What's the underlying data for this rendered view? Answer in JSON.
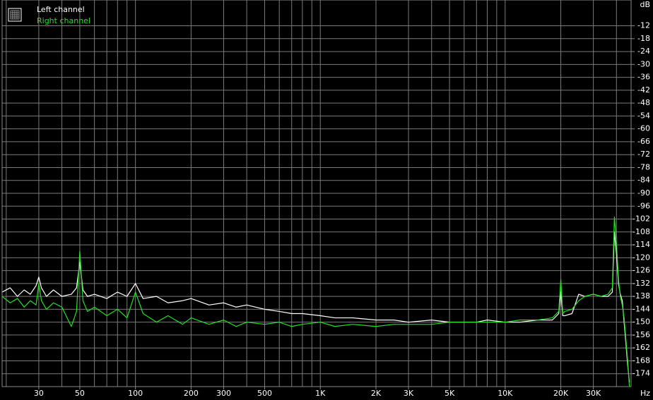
{
  "chart_data": {
    "type": "line",
    "xlabel": "Hz",
    "ylabel": "dB",
    "log_x": true,
    "grid": true,
    "legend": "top-left",
    "xlim": [
      19,
      48000
    ],
    "ylim": [
      -180,
      0
    ],
    "xticks": [
      30,
      50,
      100,
      200,
      300,
      500,
      {
        "value": 1000,
        "label": "1K"
      },
      {
        "value": 2000,
        "label": "2K"
      },
      {
        "value": 3000,
        "label": "3K"
      },
      {
        "value": 5000,
        "label": "5K"
      },
      {
        "value": 10000,
        "label": "10K"
      },
      {
        "value": 20000,
        "label": "20K"
      },
      {
        "value": 30000,
        "label": "30K"
      }
    ],
    "xgrid": [
      20,
      30,
      40,
      50,
      60,
      70,
      80,
      90,
      100,
      200,
      300,
      400,
      500,
      600,
      700,
      800,
      900,
      1000,
      2000,
      3000,
      4000,
      5000,
      6000,
      7000,
      8000,
      9000,
      10000,
      20000,
      30000,
      40000
    ],
    "yticks": [
      -12,
      -18,
      -24,
      -30,
      -36,
      -42,
      -48,
      -54,
      -60,
      -66,
      -72,
      -78,
      -84,
      -90,
      -96,
      -102,
      -108,
      -114,
      -120,
      -126,
      -132,
      -138,
      -144,
      -150,
      -156,
      -162,
      -168,
      -174
    ],
    "x": [
      19,
      21,
      23,
      25,
      27,
      29,
      30,
      31,
      33,
      36,
      40,
      45,
      48,
      50,
      52,
      55,
      60,
      70,
      80,
      90,
      100,
      110,
      130,
      150,
      180,
      200,
      250,
      300,
      350,
      400,
      500,
      600,
      700,
      800,
      1000,
      1200,
      1500,
      2000,
      2500,
      3000,
      4000,
      5000,
      6000,
      7000,
      8000,
      10000,
      12000,
      15000,
      18000,
      19500,
      20000,
      20500,
      21000,
      23000,
      25000,
      27000,
      30000,
      33000,
      36000,
      38000,
      39000,
      40000,
      41000,
      42000,
      43000,
      44000,
      45000,
      46000,
      47000
    ],
    "series": [
      {
        "name": "Left channel",
        "color": "#ffffff",
        "values": [
          -136,
          -134,
          -138,
          -135,
          -137,
          -133,
          -129,
          -134,
          -138,
          -135,
          -138,
          -137,
          -134,
          -122,
          -135,
          -138,
          -137,
          -139,
          -136,
          -138,
          -132,
          -139,
          -138,
          -141,
          -140,
          -139,
          -142,
          -141,
          -143,
          -142,
          -144,
          -145,
          -146,
          -146,
          -147,
          -148,
          -148,
          -149,
          -149,
          -150,
          -149,
          -150,
          -150,
          -150,
          -149,
          -150,
          -150,
          -149,
          -149,
          -146,
          -136,
          -147,
          -147,
          -146,
          -137,
          -138,
          -137,
          -138,
          -138,
          -136,
          -108,
          -118,
          -132,
          -137,
          -140,
          -150,
          -160,
          -170,
          -178
        ]
      },
      {
        "name": "Right channel",
        "color": "#22e022",
        "values": [
          -138,
          -141,
          -139,
          -143,
          -140,
          -142,
          -132,
          -140,
          -144,
          -141,
          -143,
          -152,
          -145,
          -117,
          -140,
          -145,
          -143,
          -147,
          -144,
          -148,
          -136,
          -146,
          -150,
          -147,
          -151,
          -148,
          -151,
          -149,
          -152,
          -150,
          -151,
          -150,
          -152,
          -151,
          -150,
          -152,
          -151,
          -152,
          -151,
          -151,
          -151,
          -150,
          -150,
          -150,
          -150,
          -150,
          -149,
          -149,
          -148,
          -145,
          -130,
          -146,
          -145,
          -144,
          -140,
          -138,
          -137,
          -138,
          -137,
          -134,
          -101,
          -113,
          -130,
          -138,
          -142,
          -148,
          -158,
          -168,
          -180
        ]
      }
    ]
  }
}
